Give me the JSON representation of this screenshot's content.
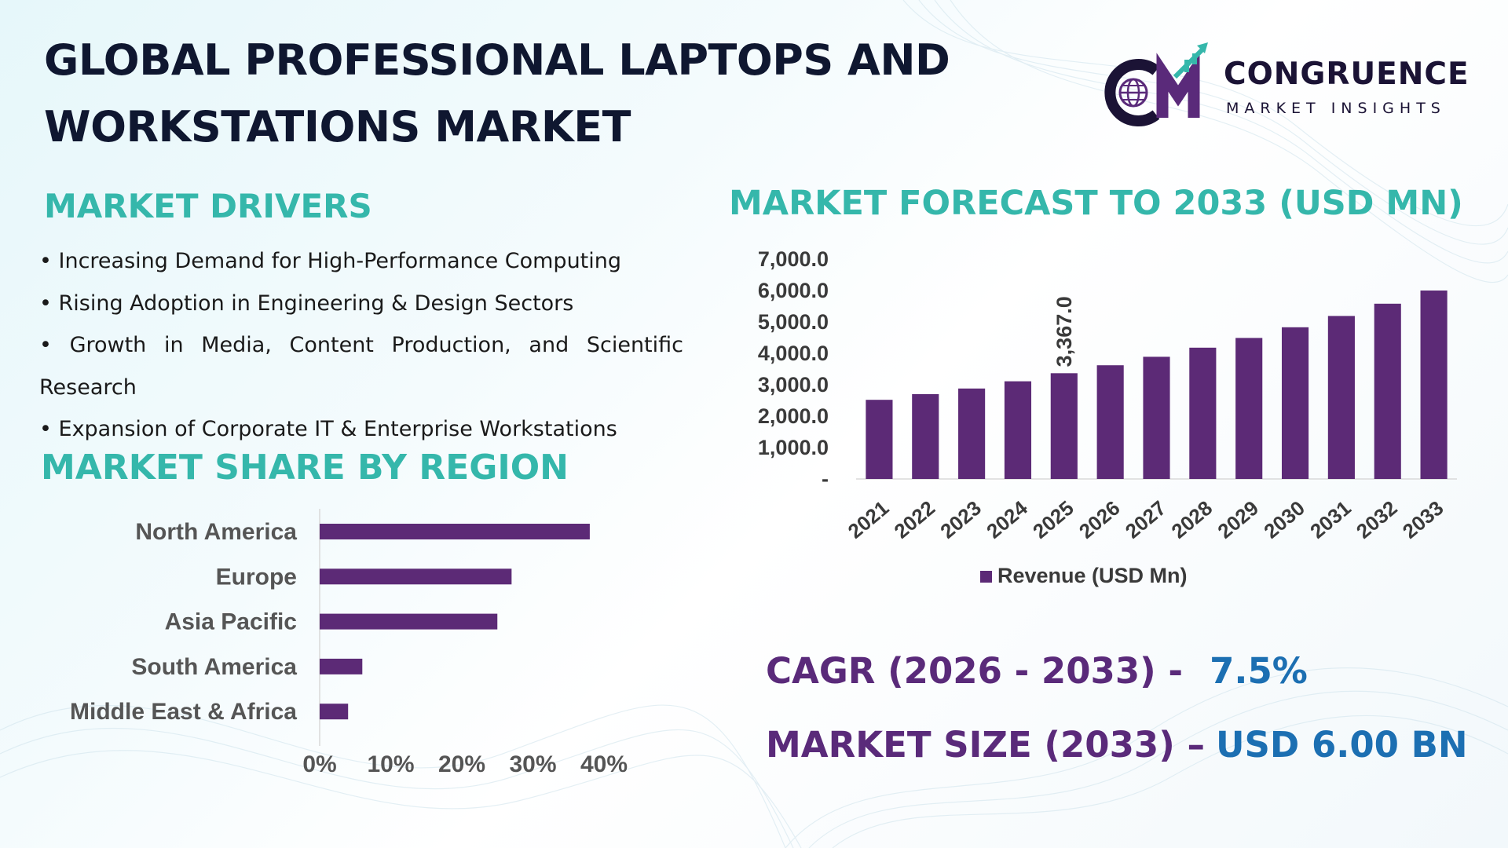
{
  "title": {
    "line1": "GLOBAL PROFESSIONAL LAPTOPS AND",
    "line2": "WORKSTATIONS MARKET"
  },
  "logo": {
    "name": "CONGRUENCE",
    "subtitle": "MARKET INSIGHTS",
    "monogram": "CM"
  },
  "market_drivers": {
    "heading": "MARKET DRIVERS",
    "items": [
      "• Increasing Demand for High-Performance Computing",
      "• Rising Adoption in Engineering & Design Sectors",
      "• Growth in Media, Content Production, and Scientific Research",
      "• Expansion of Corporate IT & Enterprise Workstations"
    ]
  },
  "region_heading": "MARKET SHARE BY REGION",
  "forecast_heading": "MARKET FORECAST TO 2033 (USD MN)",
  "cagr": {
    "label": "CAGR (2026 - 2033) -",
    "value": "7.5%"
  },
  "market_size": {
    "label": "MARKET SIZE (2033) –",
    "value": "USD 6.00 BN"
  },
  "colors": {
    "bar": "#5c2a76",
    "heading": "#35b7ab",
    "title": "#0f1730",
    "stat_label": "#5a2a7a",
    "stat_value": "#1c6fb2"
  },
  "chart_data": [
    {
      "type": "bar",
      "title": "MARKET FORECAST TO 2033 (USD MN)",
      "categories": [
        "2021",
        "2022",
        "2023",
        "2024",
        "2025",
        "2026",
        "2027",
        "2028",
        "2029",
        "2030",
        "2031",
        "2032",
        "2033"
      ],
      "series": [
        {
          "name": "Revenue (USD Mn)",
          "values": [
            2520,
            2700,
            2880,
            3110,
            3367,
            3620,
            3890,
            4180,
            4490,
            4830,
            5190,
            5580,
            6000
          ]
        }
      ],
      "data_labels": [
        {
          "category": "2025",
          "text": "3,367.0"
        }
      ],
      "ylim": [
        0,
        7000
      ],
      "yticks": [
        "-",
        "1,000.0",
        "2,000.0",
        "3,000.0",
        "4,000.0",
        "5,000.0",
        "6,000.0",
        "7,000.0"
      ],
      "grid": false,
      "legend": "bottom"
    },
    {
      "type": "bar",
      "orientation": "horizontal",
      "title": "MARKET SHARE BY REGION",
      "categories": [
        "North America",
        "Europe",
        "Asia Pacific",
        "South America",
        "Middle East & Africa"
      ],
      "values": [
        38,
        27,
        25,
        6,
        4
      ],
      "xlim": [
        0,
        40
      ],
      "xticks": [
        "0%",
        "10%",
        "20%",
        "30%",
        "40%"
      ],
      "grid": false
    }
  ]
}
